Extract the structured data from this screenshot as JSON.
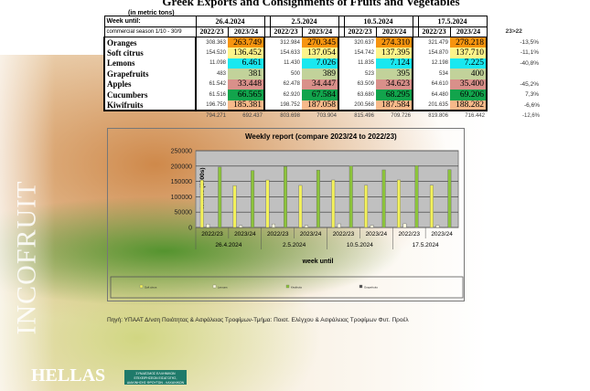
{
  "title": "Greek Exports and Consignments of Fruits and Vegetables",
  "unit": "(in metric tons)",
  "week_label": "Week until:",
  "season_label": "commercial season 1/10 - 30/9",
  "weeks": [
    "26.4.2024",
    "2.5.2024",
    "10.5.2024",
    "17.5.2024"
  ],
  "years": [
    "2022/23",
    "2023/24"
  ],
  "change_header": "23>22",
  "colors": {
    "Oranges": "#f7940f",
    "Soft citrus": "#fdf48a",
    "Lemons": "#19e8f0",
    "Grapefruits": "#c2d29a",
    "Apples": "#d9908a",
    "Cucumbers": "#12a44c",
    "Kiwifruits": "#f7b98a"
  },
  "rows": [
    {
      "name": "Oranges",
      "vals": [
        "308.363",
        "263.749",
        "312.984",
        "270.345",
        "320.637",
        "274.310",
        "321.479",
        "278.218"
      ],
      "change": "-13,5%"
    },
    {
      "name": "Soft citrus",
      "vals": [
        "154.520",
        "136.452",
        "154.633",
        "137.054",
        "154.742",
        "137.395",
        "154.870",
        "137.710"
      ],
      "change": "-11,1%"
    },
    {
      "name": "Lemons",
      "vals": [
        "11.098",
        "6.461",
        "11.430",
        "7.026",
        "11.835",
        "7.124",
        "12.198",
        "7.225"
      ],
      "change": "-40,8%"
    },
    {
      "name": "Grapefruits",
      "vals": [
        "483",
        "381",
        "500",
        "389",
        "523",
        "395",
        "534",
        "400"
      ],
      "change": ""
    },
    {
      "name": "Apples",
      "vals": [
        "61.542",
        "33.448",
        "62.478",
        "34.447",
        "63.509",
        "34.623",
        "64.610",
        "35.400"
      ],
      "change": "-45,2%"
    },
    {
      "name": "Cucumbers",
      "vals": [
        "61.516",
        "66.565",
        "62.920",
        "67.584",
        "63.680",
        "68.295",
        "64.480",
        "69.206"
      ],
      "change": "7,3%"
    },
    {
      "name": "Kiwifruits",
      "vals": [
        "196.750",
        "185.381",
        "198.752",
        "187.058",
        "200.568",
        "187.584",
        "201.635",
        "188.282"
      ],
      "change": "-6,6%"
    }
  ],
  "totals": {
    "vals": [
      "794.271",
      "692.437",
      "803.698",
      "703.904",
      "815.496",
      "709.726",
      "819.806",
      "716.442"
    ],
    "change": "-12,6%"
  },
  "chart_data": {
    "type": "bar",
    "title": "Weekly report (compare 2023/24 to 2022/23)",
    "xlabel": "week until",
    "ylabel": "tonnes (1000s)",
    "ylim": [
      0,
      250000
    ],
    "yticks": [
      "250000",
      "200000",
      "150000",
      "100000",
      "50000",
      "0"
    ],
    "categories": [
      "2022/23",
      "2023/24",
      "2022/23",
      "2023/24",
      "2022/23",
      "2023/24",
      "2022/23",
      "2023/24"
    ],
    "groups": [
      "26.4.2024",
      "2.5.2024",
      "10.5.2024",
      "17.5.2024"
    ],
    "series": [
      {
        "name": "Soft citrus",
        "color": "#f4f25a",
        "values": [
          154520,
          136452,
          154633,
          137054,
          154742,
          137395,
          154870,
          137710
        ]
      },
      {
        "name": "Lemons",
        "color": "#fffde0",
        "values": [
          11098,
          6461,
          11430,
          7026,
          11835,
          7124,
          12198,
          7225
        ]
      },
      {
        "name": "Kiwifruits",
        "color": "#8cc43a",
        "values": [
          196750,
          185381,
          198752,
          187058,
          200568,
          187584,
          201635,
          188282
        ]
      },
      {
        "name": "Grapefruits",
        "color": "#555555",
        "values": [
          483,
          381,
          500,
          389,
          523,
          395,
          534,
          400
        ]
      }
    ],
    "grid": true,
    "legend": "bottom"
  },
  "source": "Πηγή: ΥΠΑΑΤ  Δ/νση Ποιότητας & Ασφάλειας Τροφίμων-Τμήμα: Ποιοτ. Ελέγχου & Ασφάλειας Τροφίμων Φυτ. Προέλ",
  "logo": {
    "vertical": "INCOFRUIT",
    "hellas": "HELLAS",
    "assoc": "ΣΥΝΔΕΣΜΟΣ ΕΛΛΗΝΙΚΩΝ ΕΠΙΧΕΙΡΗΣΕΩΝ ΕΙΣΑΓΩΓΗΣ, ΔΙΑΚΙΝΗΣΗΣ ΦΡΟΥΤΩΝ - ΛΑΧΑΝΙΚΩΝ ΚΑΙ ΣΥΝΑΦΩΝ"
  }
}
